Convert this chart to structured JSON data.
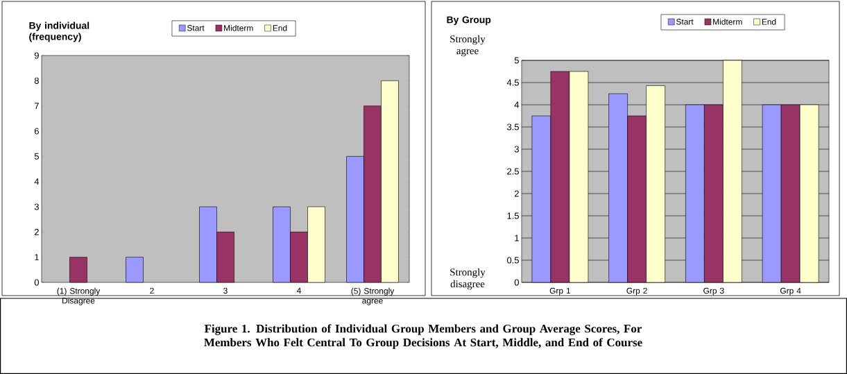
{
  "chart_data": [
    {
      "type": "bar",
      "title": "By individual (frequency)",
      "categories": [
        "(1) Strongly Disagree",
        "2",
        "3",
        "4",
        "(5) Strongly agree"
      ],
      "series": [
        {
          "name": "Start",
          "color": "#9999ff",
          "values": [
            0,
            1,
            3,
            3,
            5
          ]
        },
        {
          "name": "Midterm",
          "color": "#993366",
          "values": [
            1,
            0,
            2,
            2,
            7
          ]
        },
        {
          "name": "End",
          "color": "#ffffcc",
          "values": [
            0,
            0,
            0,
            3,
            8
          ]
        }
      ],
      "ylim": [
        0,
        9
      ],
      "yticks": [
        0,
        1,
        2,
        3,
        4,
        5,
        6,
        7,
        8,
        9
      ],
      "grid": false,
      "legend": "top",
      "annotations": [
        "Figure 1.  Distribution of Individual Group Members and Group Average Scores, For Members Who Felt Central To Group Decisions At Start, Middle, and End of Course"
      ]
    },
    {
      "type": "bar",
      "title": "By Group",
      "categories": [
        "Grp 1",
        "Grp 2",
        "Grp 3",
        "Grp 4"
      ],
      "series": [
        {
          "name": "Start",
          "color": "#9999ff",
          "values": [
            3.75,
            4.25,
            4,
            4
          ]
        },
        {
          "name": "Midterm",
          "color": "#993366",
          "values": [
            4.75,
            3.75,
            4,
            4
          ]
        },
        {
          "name": "End",
          "color": "#ffffcc",
          "values": [
            4.75,
            4.43,
            5,
            4
          ]
        }
      ],
      "ylim": [
        0,
        5
      ],
      "yticks": [
        0,
        0.5,
        1,
        1.5,
        2,
        2.5,
        3,
        3.5,
        4,
        4.5,
        5
      ],
      "grid": "y",
      "legend": "top",
      "annotations": [
        "Strongly agree",
        "Strongly disagree"
      ]
    }
  ]
}
